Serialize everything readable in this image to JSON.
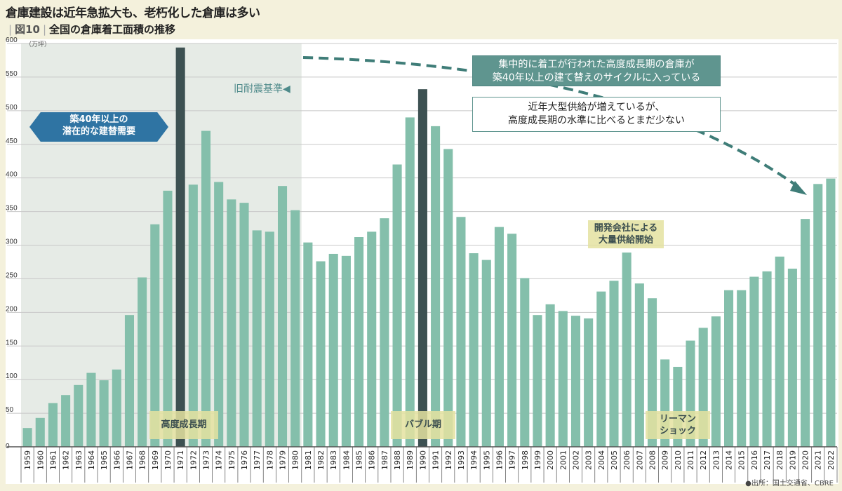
{
  "header": {
    "title": "倉庫建設は近年急拡大も、老朽化した倉庫は多い",
    "figure_label": "図10",
    "subtitle": "全国の倉庫着工面積の推移"
  },
  "annotations": {
    "potential_demand": [
      "築40年以上の",
      "潜在的な建替需要"
    ],
    "old_standard": "旧耐震基準◀",
    "cycle_note": [
      "集中的に着工が行われた高度成長期の倉庫が",
      "築40年以上の建て替えのサイクルに入っている"
    ],
    "recent_note": [
      "近年大型供給が増えているが、",
      "高度成長期の水準に比べるとまだ少ない"
    ],
    "high_growth": "高度成長期",
    "bubble": "バブル期",
    "lehman": [
      "リーマン",
      "ショック"
    ],
    "developers": [
      "開発会社による",
      "大量供給開始"
    ]
  },
  "source": "●出所：国土交通省、CBRE",
  "colors": {
    "bar": "#84bfab",
    "bar_highlight": "#3d5152",
    "shade": "#e6ebe6",
    "arrow": "#3f7d78"
  },
  "chart_data": {
    "type": "bar",
    "ylabel": "（万坪）",
    "ylim": [
      0,
      600
    ],
    "yticks": [
      0,
      50,
      100,
      150,
      200,
      250,
      300,
      350,
      400,
      450,
      500,
      550,
      600
    ],
    "grid": true,
    "highlighted_categories": [
      "1971",
      "1990"
    ],
    "shaded_range": [
      "1959",
      "1980"
    ],
    "categories": [
      "1959",
      "1960",
      "1961",
      "1962",
      "1963",
      "1964",
      "1965",
      "1966",
      "1967",
      "1968",
      "1969",
      "1970",
      "1971",
      "1972",
      "1973",
      "1974",
      "1975",
      "1976",
      "1977",
      "1978",
      "1979",
      "1980",
      "1981",
      "1982",
      "1983",
      "1984",
      "1985",
      "1986",
      "1987",
      "1988",
      "1989",
      "1990",
      "1991",
      "1992",
      "1993",
      "1994",
      "1995",
      "1996",
      "1997",
      "1998",
      "1999",
      "2000",
      "2001",
      "2002",
      "2003",
      "2004",
      "2005",
      "2006",
      "2007",
      "2008",
      "2009",
      "2010",
      "2011",
      "2012",
      "2013",
      "2014",
      "2015",
      "2016",
      "2017",
      "2018",
      "2019",
      "2020",
      "2021",
      "2022"
    ],
    "values": [
      28,
      43,
      65,
      77,
      92,
      110,
      99,
      115,
      196,
      252,
      331,
      381,
      594,
      390,
      470,
      394,
      368,
      363,
      322,
      320,
      388,
      352,
      304,
      276,
      287,
      284,
      312,
      320,
      340,
      420,
      490,
      532,
      477,
      443,
      342,
      288,
      278,
      327,
      317,
      251,
      196,
      212,
      202,
      195,
      191,
      231,
      247,
      289,
      243,
      221,
      130,
      119,
      158,
      177,
      194,
      233,
      233,
      253,
      261,
      283,
      265,
      339,
      391,
      399
    ]
  }
}
